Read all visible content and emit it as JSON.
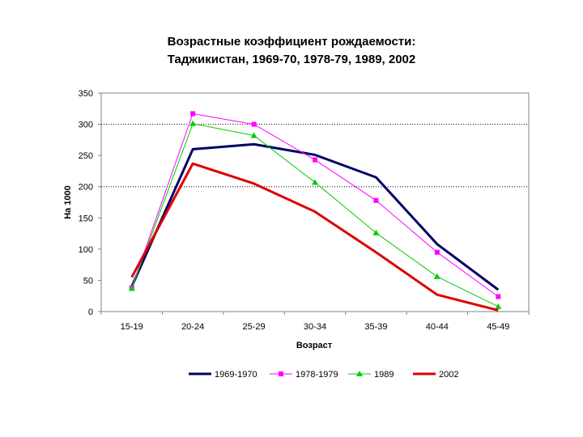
{
  "chart_data": {
    "type": "line",
    "title_lines": [
      "Возрастные коэффициент рождаемости:",
      "Таджикистан, 1969-70, 1978-79, 1989, 2002"
    ],
    "xlabel": "Возраст",
    "ylabel": "На 1000",
    "categories": [
      "15-19",
      "20-24",
      "25-29",
      "30-34",
      "35-39",
      "40-44",
      "45-49"
    ],
    "ylim": [
      0,
      350
    ],
    "yticks": [
      0,
      50,
      100,
      150,
      200,
      250,
      300,
      350
    ],
    "grid": "dotted horizontal lines at 200 and 300",
    "legend_position": "bottom",
    "series": [
      {
        "name": "1969-1970",
        "color": "#000066",
        "marker": "none",
        "values": [
          40,
          260,
          268,
          251,
          215,
          108,
          35
        ]
      },
      {
        "name": "1978-1979",
        "color": "#ff00ff",
        "marker": "square",
        "values": [
          38,
          317,
          300,
          243,
          178,
          95,
          24
        ]
      },
      {
        "name": "1989",
        "color": "#00cc00",
        "marker": "triangle",
        "values": [
          37,
          301,
          282,
          207,
          126,
          56,
          8
        ]
      },
      {
        "name": "2002",
        "color": "#dd0000",
        "marker": "none",
        "values": [
          55,
          237,
          205,
          160,
          95,
          27,
          2
        ]
      }
    ]
  }
}
